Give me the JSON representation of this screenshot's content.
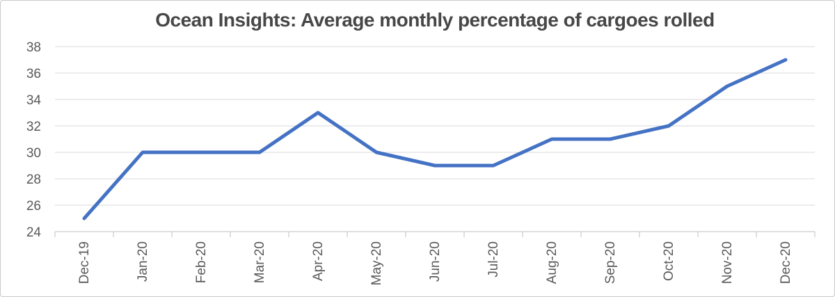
{
  "chart_data": {
    "type": "line",
    "title": "Ocean Insights: Average monthly percentage of cargoes rolled",
    "categories": [
      "Dec-19",
      "Jan-20",
      "Feb-20",
      "Mar-20",
      "Apr-20",
      "May-20",
      "Jun-20",
      "Jul-20",
      "Aug-20",
      "Sep-20",
      "Oct-20",
      "Nov-20",
      "Dec-20"
    ],
    "values": [
      25,
      30,
      30,
      30,
      33,
      30,
      29,
      29,
      31,
      31,
      32,
      35,
      37
    ],
    "xlabel": "",
    "ylabel": "",
    "ylim": [
      24,
      38
    ],
    "ytick_step": 2,
    "grid": "horizontal",
    "legend": "none",
    "colors": {
      "line": "#4472C4",
      "grid": "#D9D9D9",
      "axis": "#BFBFBF",
      "tick_text": "#595959",
      "title_text": "#474747"
    }
  }
}
